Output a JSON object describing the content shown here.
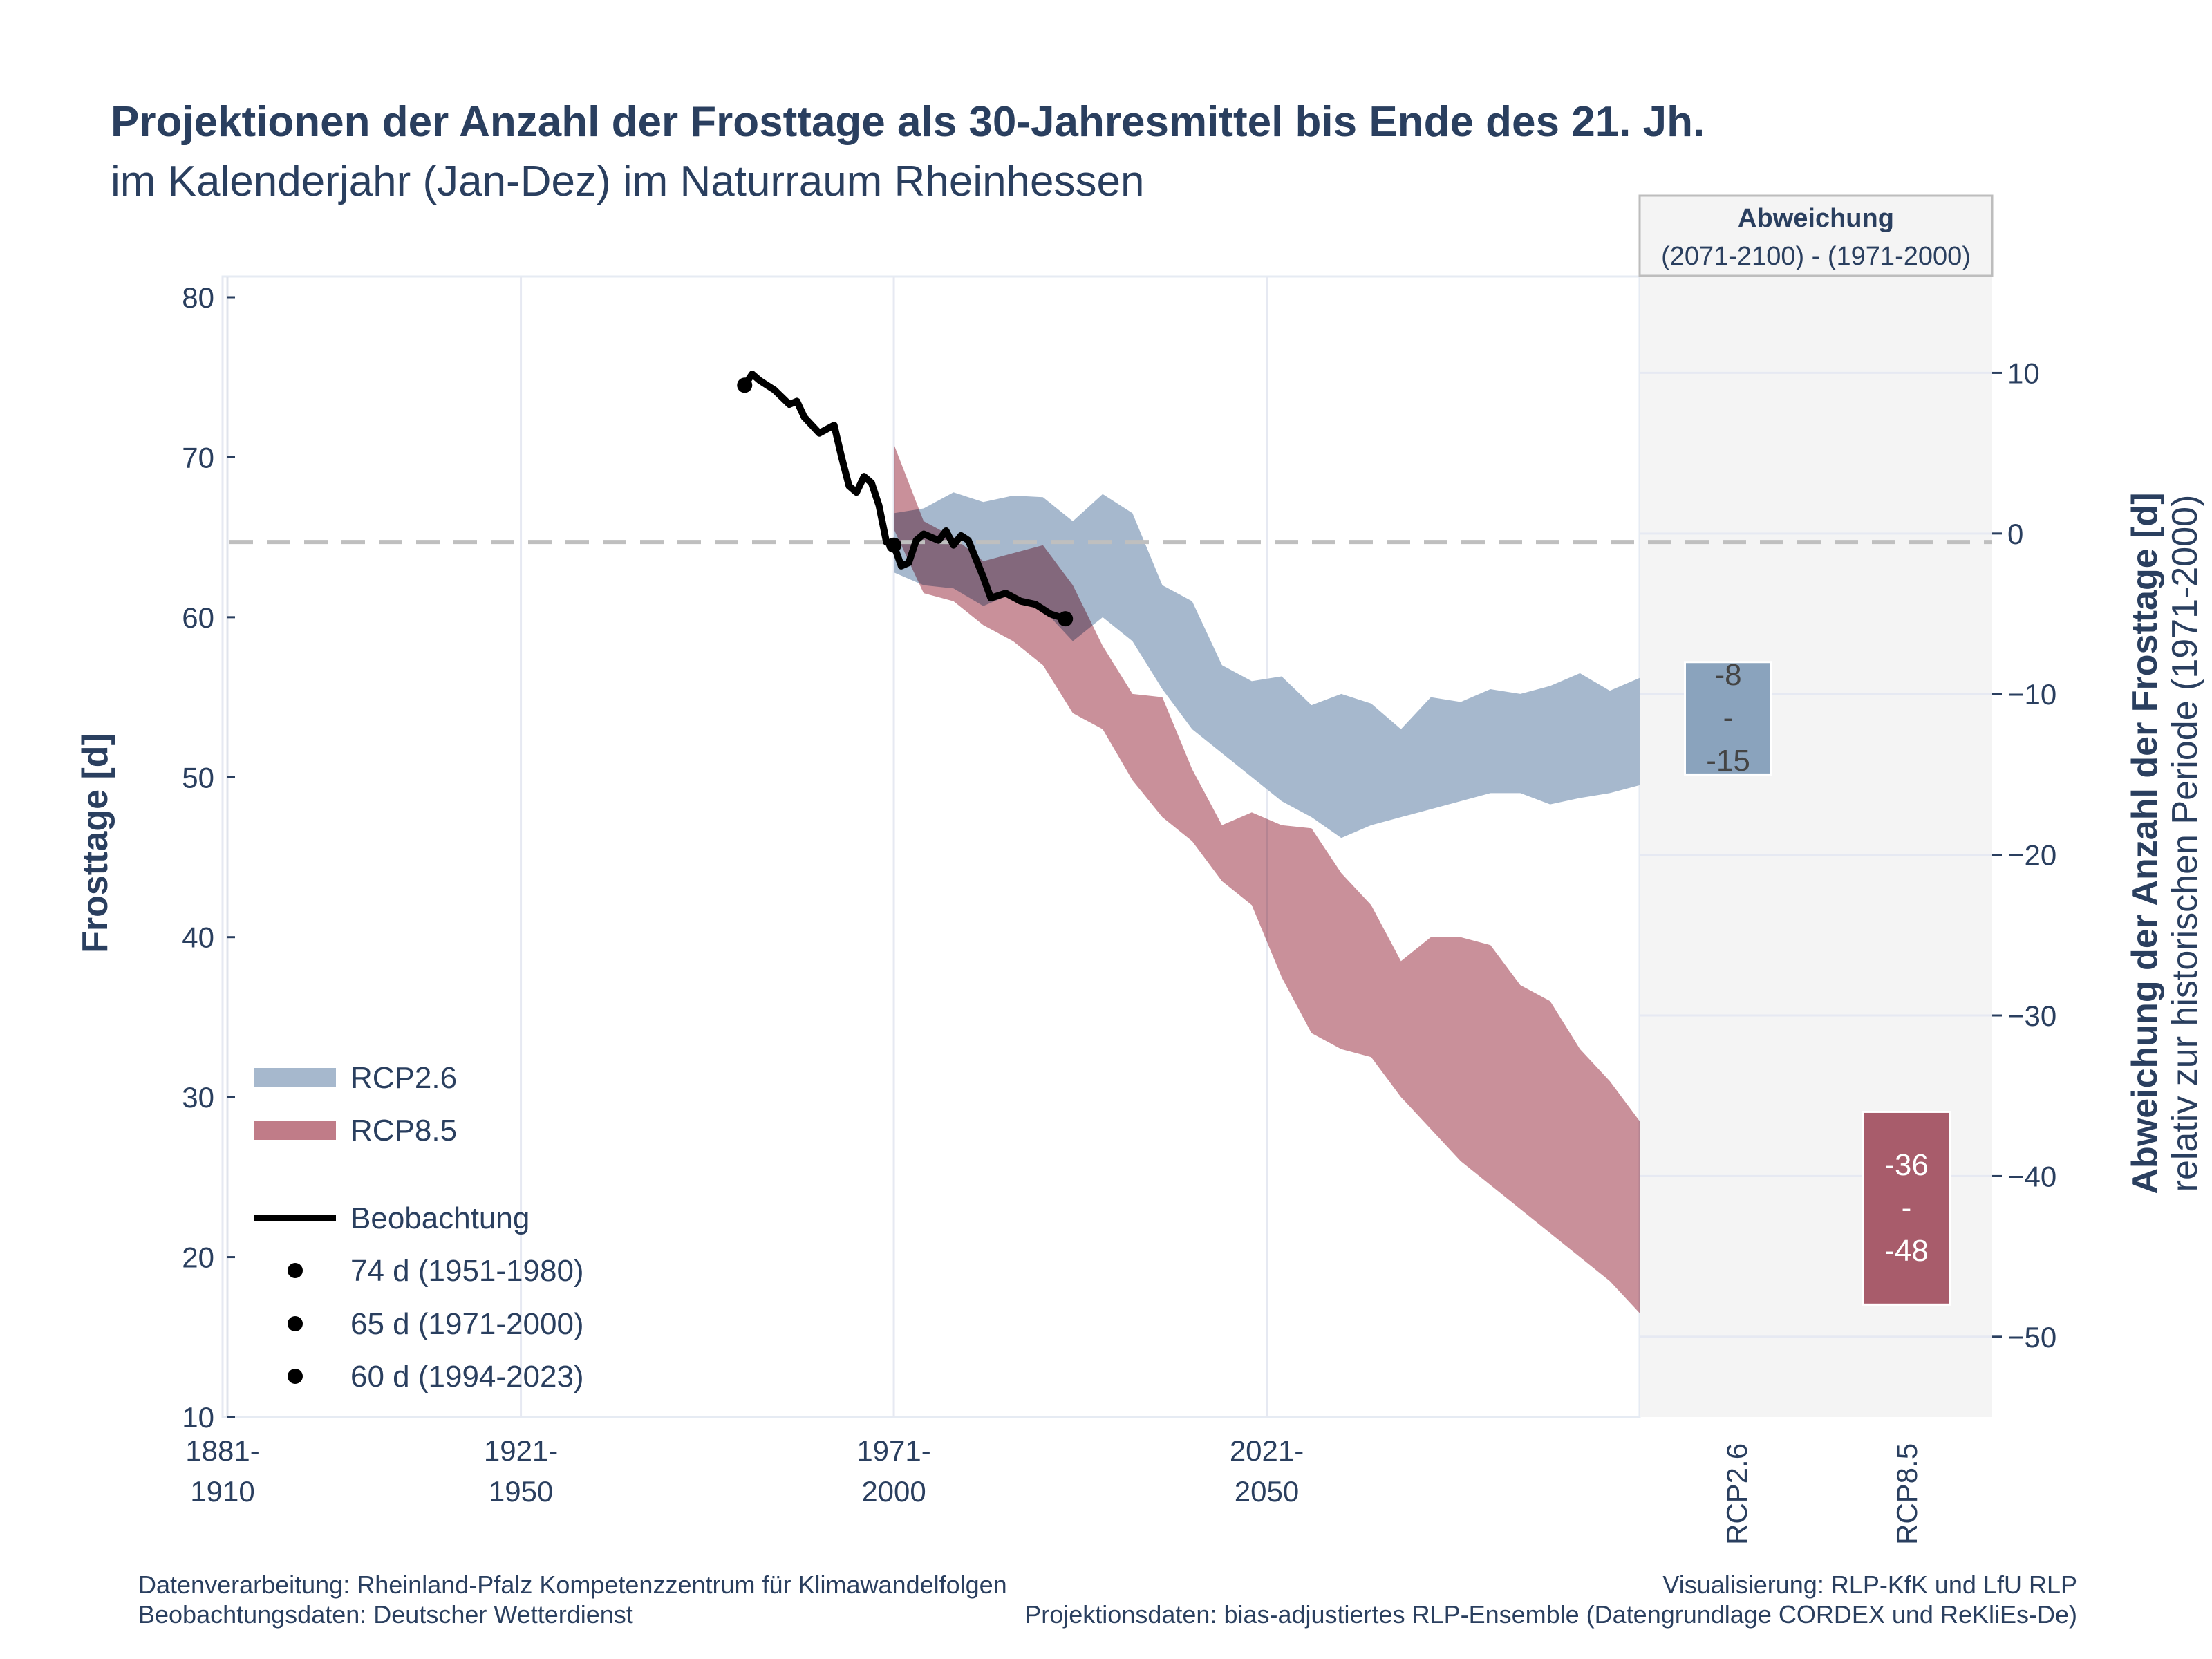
{
  "title": "Projektionen der Anzahl der Frosttage als 30-Jahresmittel bis Ende des 21. Jh.",
  "subtitle": "im Kalenderjahr (Jan-Dez) im Naturraum Rheinhessen",
  "colors": {
    "rcp26": "#a6b8cd",
    "rcp85": "#c07c88",
    "overlap": "#8a5a6e",
    "observation": "#000000",
    "bar_rcp26": "#8aa3bd",
    "bar_rcp85": "#a85c6b",
    "reference_line": "#bfbfbf",
    "panel_bg": "#f4f4f4",
    "text": "#2a3f5f"
  },
  "chart_data": {
    "type": "area",
    "x_unit": "30-year window start year",
    "xlim": [
      1881,
      2071
    ],
    "ylim": [
      10,
      80
    ],
    "y2lim": [
      -55,
      16
    ],
    "xticks": [
      {
        "value": 1881,
        "line1": "1881-",
        "line2": "1910"
      },
      {
        "value": 1921,
        "line1": "1921-",
        "line2": "1950"
      },
      {
        "value": 1971,
        "line1": "1971-",
        "line2": "2000"
      },
      {
        "value": 2021,
        "line1": "2021-",
        "line2": "2050"
      }
    ],
    "yticks": [
      10,
      20,
      30,
      40,
      50,
      60,
      70,
      80
    ],
    "y2ticks": [
      10,
      0,
      -10,
      -20,
      -30,
      -40,
      -50
    ],
    "ylabel": "Frosttage [d]",
    "y2label": "Abweichung der Anzahl der Frosttage [d]",
    "y2label_sub": "relativ zur historischen Periode (1971-2000)",
    "reference_value": 64.7,
    "grid": true,
    "legend_position": "bottom-left",
    "series": [
      {
        "name": "RCP2.6",
        "kind": "band",
        "x": [
          1971,
          1975,
          1979,
          1983,
          1987,
          1991,
          1995,
          1999,
          2003,
          2007,
          2011,
          2015,
          2019,
          2023,
          2027,
          2031,
          2035,
          2039,
          2043,
          2047,
          2051,
          2055,
          2059,
          2063,
          2067,
          2071
        ],
        "upper": [
          66.5,
          66.8,
          67.8,
          67.2,
          67.6,
          67.5,
          66.0,
          67.7,
          66.5,
          62.0,
          61.0,
          57.0,
          56.0,
          56.3,
          54.5,
          55.2,
          54.6,
          53.0,
          55.0,
          54.7,
          55.5,
          55.2,
          55.7,
          56.5,
          55.4,
          56.2
        ],
        "lower": [
          62.8,
          62.0,
          61.8,
          60.7,
          61.5,
          60.5,
          58.5,
          60.0,
          58.5,
          55.5,
          53.0,
          51.5,
          50.0,
          48.5,
          47.5,
          46.2,
          47.0,
          47.5,
          48.0,
          48.5,
          49.0,
          49.0,
          48.3,
          48.7,
          49.0,
          49.5
        ]
      },
      {
        "name": "RCP8.5",
        "kind": "band",
        "x": [
          1971,
          1975,
          1979,
          1983,
          1987,
          1991,
          1995,
          1999,
          2003,
          2007,
          2011,
          2015,
          2019,
          2023,
          2027,
          2031,
          2035,
          2039,
          2043,
          2047,
          2051,
          2055,
          2059,
          2063,
          2067,
          2071
        ],
        "upper": [
          70.8,
          66.0,
          65.0,
          63.5,
          64.0,
          64.5,
          62.0,
          58.2,
          55.2,
          55.0,
          50.5,
          47.0,
          47.8,
          47.0,
          46.8,
          44.0,
          42.0,
          38.5,
          40.0,
          40.0,
          39.5,
          37.0,
          36.0,
          33.0,
          31.0,
          28.5
        ],
        "lower": [
          65.5,
          61.5,
          61.0,
          59.5,
          58.5,
          57.0,
          54.0,
          53.0,
          49.8,
          47.5,
          46.0,
          43.5,
          42.0,
          37.5,
          34.0,
          33.0,
          32.5,
          30.0,
          28.0,
          26.0,
          24.5,
          23.0,
          21.5,
          20.0,
          18.5,
          16.5
        ]
      },
      {
        "name": "Beobachtung",
        "kind": "line",
        "x": [
          1951,
          1952,
          1953,
          1955,
          1957,
          1958,
          1959,
          1961,
          1963,
          1964,
          1965,
          1966,
          1967,
          1968,
          1969,
          1970,
          1971,
          1972,
          1973,
          1974,
          1975,
          1977,
          1978,
          1979,
          1980,
          1981,
          1983,
          1984,
          1986,
          1988,
          1990,
          1992,
          1994
        ],
        "y": [
          74.5,
          75.2,
          74.8,
          74.2,
          73.3,
          73.5,
          72.5,
          71.5,
          72.0,
          70.0,
          68.2,
          67.8,
          68.8,
          68.4,
          67.0,
          64.7,
          64.5,
          63.2,
          63.4,
          64.8,
          65.2,
          64.8,
          65.4,
          64.5,
          65.1,
          64.8,
          62.5,
          61.2,
          61.5,
          61.0,
          60.8,
          60.2,
          59.9
        ]
      }
    ],
    "observation_points": [
      {
        "x": 1951,
        "y": 74.5,
        "label": "74 d (1951-1980)"
      },
      {
        "x": 1971,
        "y": 64.5,
        "label": "65 d (1971-2000)"
      },
      {
        "x": 1994,
        "y": 59.9,
        "label": "60 d (1994-2023)"
      }
    ],
    "deviation_panel": {
      "title": "Abweichung",
      "subtitle": "(2071-2100) - (1971-2000)",
      "bars": [
        {
          "name": "RCP2.6",
          "high": -8,
          "low": -15,
          "label_top": "-8",
          "label_mid": "-",
          "label_bottom": "-15"
        },
        {
          "name": "RCP8.5",
          "high": -36,
          "low": -48,
          "label_top": "-36",
          "label_mid": "-",
          "label_bottom": "-48"
        }
      ]
    }
  },
  "legend": {
    "rcp26": "RCP2.6",
    "rcp85": "RCP8.5",
    "obs": "Beobachtung",
    "p1": "74 d (1951-1980)",
    "p2": "65 d (1971-2000)",
    "p3": "60 d (1994-2023)"
  },
  "footer": {
    "left1": "Datenverarbeitung: Rheinland-Pfalz Kompetenzzentrum für Klimawandelfolgen",
    "left2": "Beobachtungsdaten:  Deutscher Wetterdienst",
    "right1": "Visualisierung: RLP-KfK und LfU RLP",
    "right2": "Projektionsdaten: bias-adjustiertes RLP-Ensemble (Datengrundlage CORDEX und ReKliEs-De)"
  }
}
